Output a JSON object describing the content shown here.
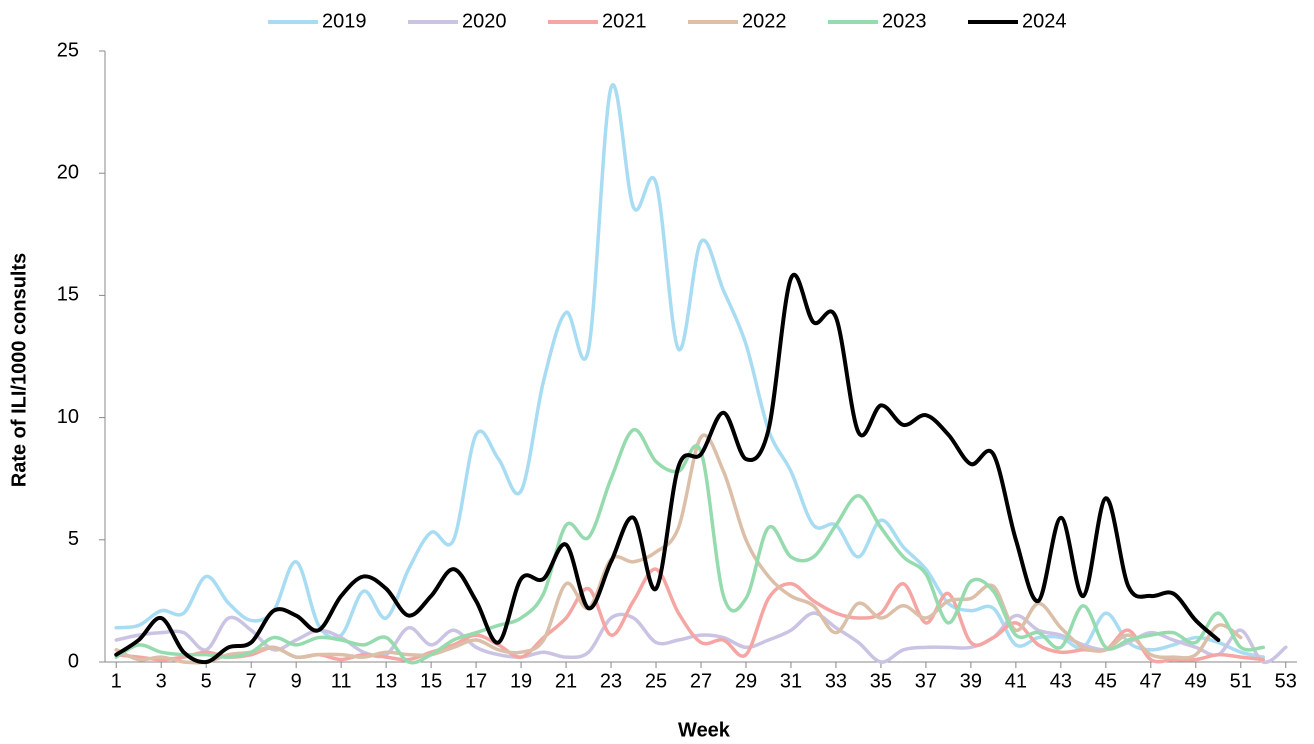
{
  "chart_data": {
    "type": "line",
    "x_label": "Week",
    "y_label": "Rate of ILI/1000 consults",
    "x": [
      1,
      2,
      3,
      4,
      5,
      6,
      7,
      8,
      9,
      10,
      11,
      12,
      13,
      14,
      15,
      16,
      17,
      18,
      19,
      20,
      21,
      22,
      23,
      24,
      25,
      26,
      27,
      28,
      29,
      30,
      31,
      32,
      33,
      34,
      35,
      36,
      37,
      38,
      39,
      40,
      41,
      42,
      43,
      44,
      45,
      46,
      47,
      48,
      49,
      50,
      51,
      52,
      53
    ],
    "xlim": [
      0.5,
      53.5
    ],
    "xticks": [
      1,
      3,
      5,
      7,
      9,
      11,
      13,
      15,
      17,
      19,
      21,
      23,
      25,
      27,
      29,
      31,
      33,
      35,
      37,
      39,
      41,
      43,
      45,
      47,
      49,
      51,
      53
    ],
    "ylim": [
      0,
      25
    ],
    "yticks": [
      0,
      5,
      10,
      15,
      20,
      25
    ],
    "legend": "top",
    "grid": false,
    "smooth": true,
    "series": [
      {
        "name": "2019",
        "color": "#a8dcf2",
        "values": [
          1.4,
          1.5,
          2.1,
          2.0,
          3.5,
          2.4,
          1.7,
          2.1,
          4.1,
          1.5,
          1.1,
          2.9,
          1.8,
          3.8,
          5.3,
          5.0,
          9.3,
          8.3,
          7.0,
          11.5,
          14.3,
          12.8,
          23.5,
          18.6,
          19.6,
          12.8,
          17.2,
          15.2,
          13.0,
          9.5,
          7.8,
          5.6,
          5.6,
          4.3,
          5.8,
          4.7,
          3.8,
          2.4,
          2.1,
          2.2,
          0.7,
          1.0,
          1.0,
          0.6,
          2.0,
          0.8,
          0.5,
          0.7,
          1.0,
          0.8,
          0.4,
          0.2,
          null
        ]
      },
      {
        "name": "2020",
        "color": "#cbc3e3",
        "values": [
          0.9,
          1.1,
          1.2,
          1.2,
          0.5,
          1.8,
          1.3,
          0.5,
          0.9,
          1.3,
          1.0,
          0.4,
          0.3,
          1.4,
          0.7,
          1.3,
          0.6,
          0.3,
          0.2,
          0.4,
          0.2,
          0.4,
          1.8,
          1.8,
          0.8,
          0.9,
          1.1,
          1.0,
          0.6,
          0.9,
          1.3,
          2.0,
          1.4,
          0.8,
          0.0,
          0.5,
          0.6,
          0.6,
          0.6,
          1.0,
          1.9,
          1.3,
          1.1,
          0.7,
          0.5,
          0.8,
          1.2,
          0.9,
          0.6,
          0.3,
          1.3,
          0.0,
          0.6
        ]
      },
      {
        "name": "2021",
        "color": "#f5a6a3",
        "values": [
          0.3,
          0.2,
          0.1,
          0.2,
          0.4,
          0.2,
          0.3,
          0.6,
          0.2,
          0.3,
          0.1,
          0.3,
          0.2,
          0.1,
          0.4,
          0.7,
          1.1,
          0.7,
          0.2,
          1.0,
          1.8,
          3.0,
          1.1,
          2.5,
          3.8,
          2.0,
          0.8,
          0.9,
          0.3,
          2.6,
          3.2,
          2.5,
          2.0,
          1.8,
          2.0,
          3.2,
          1.6,
          2.8,
          0.8,
          1.0,
          1.6,
          0.7,
          0.4,
          0.5,
          0.5,
          1.3,
          0.1,
          0.1,
          0.1,
          0.3,
          0.2,
          0.1,
          null
        ]
      },
      {
        "name": "2022",
        "color": "#dbbfa8",
        "values": [
          0.5,
          0.1,
          0.2,
          0.0,
          0.0,
          0.3,
          0.4,
          0.6,
          0.2,
          0.3,
          0.3,
          0.2,
          0.4,
          0.3,
          0.3,
          0.6,
          0.9,
          0.5,
          0.4,
          0.9,
          3.2,
          2.2,
          4.2,
          4.1,
          4.5,
          5.5,
          9.2,
          7.8,
          5.0,
          3.5,
          2.7,
          2.3,
          1.2,
          2.4,
          1.8,
          2.3,
          1.8,
          2.5,
          2.6,
          3.1,
          1.3,
          2.4,
          1.4,
          0.6,
          0.5,
          1.1,
          0.3,
          0.2,
          0.3,
          1.5,
          1.0,
          null,
          null
        ]
      },
      {
        "name": "2023",
        "color": "#95dbae",
        "values": [
          0.2,
          0.7,
          0.4,
          0.3,
          0.3,
          0.2,
          0.4,
          1.0,
          0.7,
          1.0,
          0.9,
          0.7,
          1.0,
          0.0,
          0.3,
          0.9,
          1.2,
          1.5,
          1.8,
          2.8,
          5.6,
          5.1,
          7.5,
          9.5,
          8.2,
          7.8,
          8.6,
          2.7,
          2.6,
          5.5,
          4.3,
          4.3,
          5.6,
          6.8,
          5.5,
          4.3,
          3.6,
          1.6,
          3.3,
          2.9,
          1.1,
          1.2,
          0.6,
          2.3,
          0.6,
          0.9,
          1.1,
          1.2,
          0.8,
          2.0,
          0.6,
          0.6,
          null
        ]
      },
      {
        "name": "2024",
        "color": "#000000",
        "values": [
          0.3,
          0.9,
          1.8,
          0.4,
          0.0,
          0.6,
          0.8,
          2.1,
          1.9,
          1.3,
          2.7,
          3.5,
          3.0,
          1.9,
          2.7,
          3.8,
          2.5,
          0.8,
          3.4,
          3.4,
          4.8,
          2.2,
          4.1,
          5.9,
          3.0,
          8.0,
          8.5,
          10.2,
          8.3,
          9.5,
          15.7,
          13.9,
          14.1,
          9.4,
          10.5,
          9.7,
          10.1,
          9.3,
          8.1,
          8.5,
          5.0,
          2.5,
          5.9,
          2.7,
          6.7,
          3.1,
          2.7,
          2.8,
          1.7,
          0.9,
          null,
          null,
          null
        ]
      }
    ]
  }
}
